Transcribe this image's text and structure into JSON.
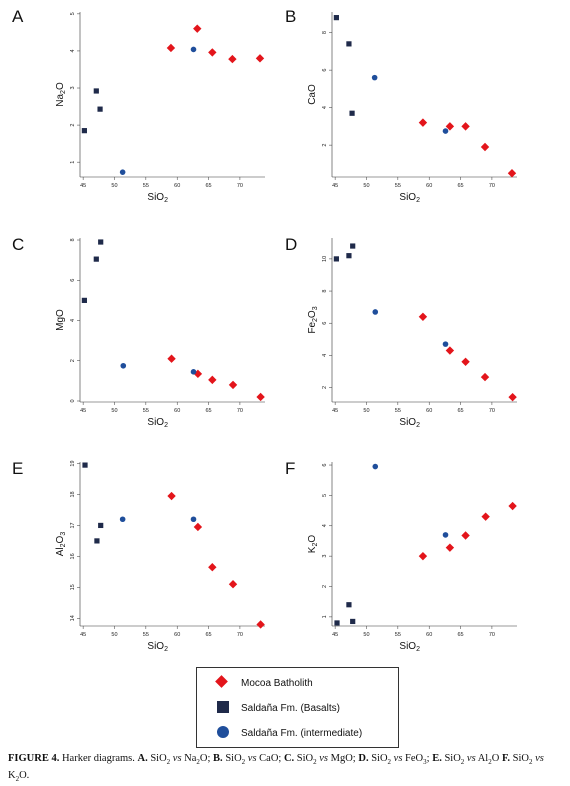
{
  "colors": {
    "mocoa": "#e3151b",
    "basalts": "#1f2a4a",
    "intermediate": "#1f4e9b"
  },
  "legend": {
    "items": [
      {
        "label": "Mocoa Batholith",
        "marker": "diamond",
        "color": "#e3151b"
      },
      {
        "label": "Saldaña Fm. (Basalts)",
        "marker": "square",
        "color": "#1f2a4a"
      },
      {
        "label": "Saldaña Fm. (intermediate)",
        "marker": "circle",
        "color": "#1f4e9b"
      }
    ]
  },
  "caption": {
    "label": "FIGURE 4.",
    "title": "Harker diagrams.",
    "parts": [
      {
        "letter": "A.",
        "text_pre": "SiO",
        "sub1": "2",
        "vs": "vs",
        "text_post": "Na",
        "sub2": "2",
        "tail": "O;"
      },
      {
        "letter": "B.",
        "text_pre": "SiO",
        "sub1": "2",
        "vs": "vs",
        "text_post": "CaO;",
        "sub2": "",
        "tail": ""
      },
      {
        "letter": "C.",
        "text_pre": "SiO",
        "sub1": "2",
        "vs": "vs",
        "text_post": "MgO;",
        "sub2": "",
        "tail": ""
      },
      {
        "letter": "D.",
        "text_pre": "SiO",
        "sub1": "2",
        "vs": "vs",
        "text_post": "FeO",
        "sub2": "3",
        "tail": ";"
      },
      {
        "letter": "E.",
        "text_pre": "SiO",
        "sub1": "2",
        "vs": "vs",
        "text_post": "Al",
        "sub2": "2",
        "tail": "O"
      },
      {
        "letter": "F.",
        "text_pre": "SiO",
        "sub1": "2",
        "vs": "vs",
        "text_post": "K",
        "sub2": "2",
        "tail": "O."
      }
    ]
  },
  "chart_data": [
    {
      "panel": "A",
      "type": "scatter",
      "xlabel": "SiO2",
      "ylabel": "Na2O",
      "xlim": [
        44.5,
        74
      ],
      "ylim": [
        0.6,
        5.05
      ],
      "xticks": [
        45,
        50,
        55,
        60,
        65,
        70
      ],
      "yticks": [
        1,
        2,
        3,
        4,
        5
      ],
      "series": [
        {
          "name": "Mocoa Batholith",
          "marker": "diamond",
          "points": [
            [
              59,
              4.08
            ],
            [
              63.2,
              4.6
            ],
            [
              65.6,
              3.96
            ],
            [
              68.8,
              3.78
            ],
            [
              73.2,
              3.8
            ]
          ]
        },
        {
          "name": "Saldaña Fm. (Basalts)",
          "marker": "square",
          "points": [
            [
              45.2,
              1.85
            ],
            [
              47.1,
              2.92
            ],
            [
              47.7,
              2.43
            ]
          ]
        },
        {
          "name": "Saldaña Fm. (intermediate)",
          "marker": "circle",
          "points": [
            [
              51.3,
              0.73
            ],
            [
              62.6,
              4.04
            ]
          ]
        }
      ]
    },
    {
      "panel": "B",
      "type": "scatter",
      "xlabel": "SiO2",
      "ylabel": "CaO",
      "xlim": [
        44.5,
        74
      ],
      "ylim": [
        0.3,
        9.1
      ],
      "xticks": [
        45,
        50,
        55,
        60,
        65,
        70
      ],
      "yticks": [
        2,
        4,
        6,
        8
      ],
      "series": [
        {
          "name": "Mocoa Batholith",
          "marker": "diamond",
          "points": [
            [
              59,
              3.2
            ],
            [
              63.3,
              3.0
            ],
            [
              65.8,
              3.0
            ],
            [
              68.9,
              1.9
            ],
            [
              73.2,
              0.5
            ]
          ]
        },
        {
          "name": "Saldaña Fm. (Basalts)",
          "marker": "square",
          "points": [
            [
              45.2,
              8.8
            ],
            [
              47.2,
              7.4
            ],
            [
              47.7,
              3.7
            ]
          ]
        },
        {
          "name": "Saldaña Fm. (intermediate)",
          "marker": "circle",
          "points": [
            [
              51.3,
              5.6
            ],
            [
              62.6,
              2.75
            ]
          ]
        }
      ]
    },
    {
      "panel": "C",
      "type": "scatter",
      "xlabel": "SiO2",
      "ylabel": "MgO",
      "xlim": [
        44.5,
        74
      ],
      "ylim": [
        -0.05,
        8.1
      ],
      "xticks": [
        45,
        50,
        55,
        60,
        65,
        70
      ],
      "yticks": [
        0,
        2,
        4,
        6,
        8
      ],
      "series": [
        {
          "name": "Mocoa Batholith",
          "marker": "diamond",
          "points": [
            [
              59.1,
              2.1
            ],
            [
              63.3,
              1.35
            ],
            [
              65.6,
              1.05
            ],
            [
              68.9,
              0.8
            ],
            [
              73.3,
              0.2
            ]
          ]
        },
        {
          "name": "Saldaña Fm. (Basalts)",
          "marker": "square",
          "points": [
            [
              45.2,
              5.0
            ],
            [
              47.1,
              7.05
            ],
            [
              47.8,
              7.9
            ]
          ]
        },
        {
          "name": "Saldaña Fm. (intermediate)",
          "marker": "circle",
          "points": [
            [
              51.4,
              1.75
            ],
            [
              62.6,
              1.45
            ]
          ]
        }
      ]
    },
    {
      "panel": "D",
      "type": "scatter",
      "xlabel": "SiO2",
      "ylabel": "Fe2O3",
      "xlim": [
        44.5,
        74
      ],
      "ylim": [
        1.1,
        11.3
      ],
      "xticks": [
        45,
        50,
        55,
        60,
        65,
        70
      ],
      "yticks": [
        2,
        4,
        6,
        8,
        10
      ],
      "series": [
        {
          "name": "Mocoa Batholith",
          "marker": "diamond",
          "points": [
            [
              59,
              6.4
            ],
            [
              63.3,
              4.3
            ],
            [
              65.8,
              3.6
            ],
            [
              68.9,
              2.65
            ],
            [
              73.3,
              1.4
            ]
          ]
        },
        {
          "name": "Saldaña Fm. (Basalts)",
          "marker": "square",
          "points": [
            [
              45.2,
              10.0
            ],
            [
              47.2,
              10.2
            ],
            [
              47.8,
              10.8
            ]
          ]
        },
        {
          "name": "Saldaña Fm. (intermediate)",
          "marker": "circle",
          "points": [
            [
              51.4,
              6.7
            ],
            [
              62.6,
              4.7
            ]
          ]
        }
      ]
    },
    {
      "panel": "E",
      "type": "scatter",
      "xlabel": "SiO2",
      "ylabel": "Al2O3",
      "xlim": [
        44.5,
        74
      ],
      "ylim": [
        13.75,
        19.05
      ],
      "xticks": [
        45,
        50,
        55,
        60,
        65,
        70
      ],
      "yticks": [
        14,
        15,
        16,
        17,
        18,
        19
      ],
      "series": [
        {
          "name": "Mocoa Batholith",
          "marker": "diamond",
          "points": [
            [
              59.1,
              17.95
            ],
            [
              63.3,
              16.95
            ],
            [
              65.6,
              15.65
            ],
            [
              68.9,
              15.1
            ],
            [
              73.3,
              13.8
            ]
          ]
        },
        {
          "name": "Saldaña Fm. (Basalts)",
          "marker": "square",
          "points": [
            [
              45.3,
              18.95
            ],
            [
              47.2,
              16.5
            ],
            [
              47.8,
              17.0
            ]
          ]
        },
        {
          "name": "Saldaña Fm. (intermediate)",
          "marker": "circle",
          "points": [
            [
              51.3,
              17.2
            ],
            [
              62.6,
              17.2
            ]
          ]
        }
      ]
    },
    {
      "panel": "F",
      "type": "scatter",
      "xlabel": "SiO2",
      "ylabel": "K2O",
      "xlim": [
        44.5,
        74
      ],
      "ylim": [
        0.7,
        6.1
      ],
      "xticks": [
        45,
        50,
        55,
        60,
        65,
        70
      ],
      "yticks": [
        1,
        2,
        3,
        4,
        5,
        6
      ],
      "series": [
        {
          "name": "Mocoa Batholith",
          "marker": "diamond",
          "points": [
            [
              59,
              3.0
            ],
            [
              63.3,
              3.28
            ],
            [
              65.8,
              3.68
            ],
            [
              69,
              4.3
            ],
            [
              73.3,
              4.65
            ]
          ]
        },
        {
          "name": "Saldaña Fm. (Basalts)",
          "marker": "square",
          "points": [
            [
              45.3,
              0.8
            ],
            [
              47.2,
              1.4
            ],
            [
              47.8,
              0.85
            ]
          ]
        },
        {
          "name": "Saldaña Fm. (intermediate)",
          "marker": "circle",
          "points": [
            [
              51.4,
              5.95
            ],
            [
              62.6,
              3.7
            ]
          ]
        }
      ]
    }
  ]
}
